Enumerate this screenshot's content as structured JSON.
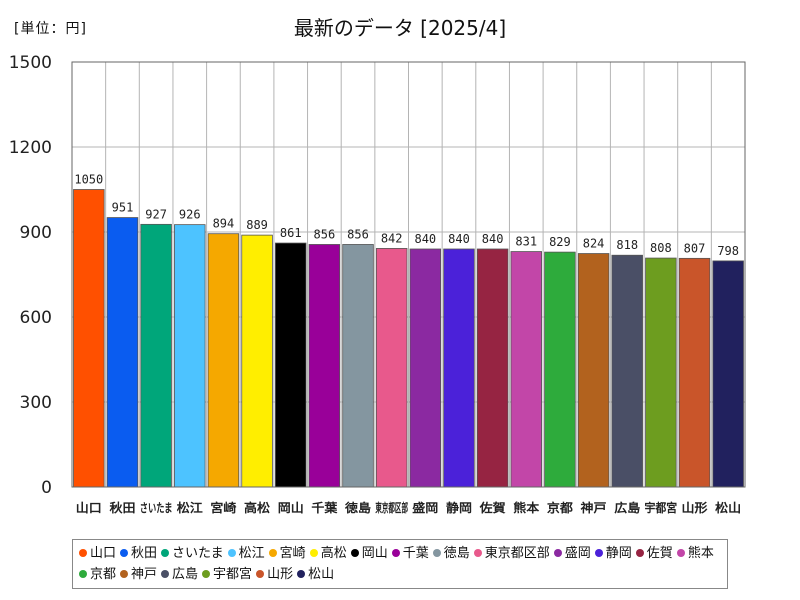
{
  "unit_label": "[単位：円]",
  "chart_data": {
    "type": "bar",
    "title": "最新のデータ [2025/4]",
    "xlabel": "",
    "ylabel": "円",
    "ylim": [
      0,
      1500
    ],
    "yticks": [
      0,
      300,
      600,
      900,
      1200,
      1500
    ],
    "tick_labels": [
      "山口",
      "秋田",
      "さいたま",
      "松江",
      "宮崎",
      "高松",
      "岡山",
      "千葉",
      "徳島",
      "東京都区部",
      "盛岡",
      "静岡",
      "佐賀",
      "熊本",
      "京都",
      "神戸",
      "広島",
      "宇都宮",
      "山形",
      "松山"
    ],
    "categories": [
      "山口",
      "秋田",
      "さいたま",
      "松江",
      "宮崎",
      "高松",
      "岡山",
      "千葉",
      "徳島",
      "東京都区部",
      "盛岡",
      "静岡",
      "佐賀",
      "熊本",
      "京都",
      "神戸",
      "広島",
      "宇都宮",
      "山形",
      "松山"
    ],
    "values": [
      1050,
      951,
      927,
      926,
      894,
      889,
      861,
      856,
      856,
      842,
      840,
      840,
      840,
      831,
      829,
      824,
      818,
      808,
      807,
      798
    ],
    "colors": [
      "#ff5000",
      "#0a5cf0",
      "#00a67a",
      "#4dc3ff",
      "#f5a800",
      "#ffee00",
      "#000000",
      "#990099",
      "#8496a0",
      "#e8598c",
      "#8b29a1",
      "#4b21d9",
      "#962442",
      "#c246a8",
      "#2eab3c",
      "#b2621e",
      "#4a4f66",
      "#6d9d1f",
      "#c9552a",
      "#21215e"
    ],
    "grid": true,
    "legend_position": "bottom"
  }
}
